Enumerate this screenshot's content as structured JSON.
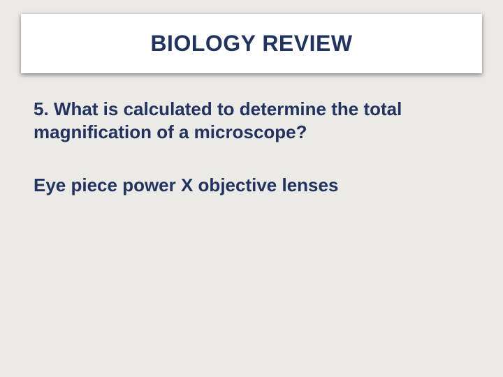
{
  "slide": {
    "background_color": "#eceae6",
    "title_bar": {
      "background_color": "#ffffff",
      "shadow_color": "rgba(0,0,0,0.5)",
      "text": "BIOLOGY REVIEW",
      "text_color": "#22335f",
      "font_size_pt": 32,
      "font_weight": 700
    },
    "question": {
      "text": "5. What is calculated to determine the total magnification of a microscope?",
      "text_color": "#22335f",
      "font_size_pt": 26,
      "font_weight": 700
    },
    "answer": {
      "text": "Eye piece power  X objective lenses",
      "text_color": "#22335f",
      "font_size_pt": 26,
      "font_weight": 700
    }
  }
}
